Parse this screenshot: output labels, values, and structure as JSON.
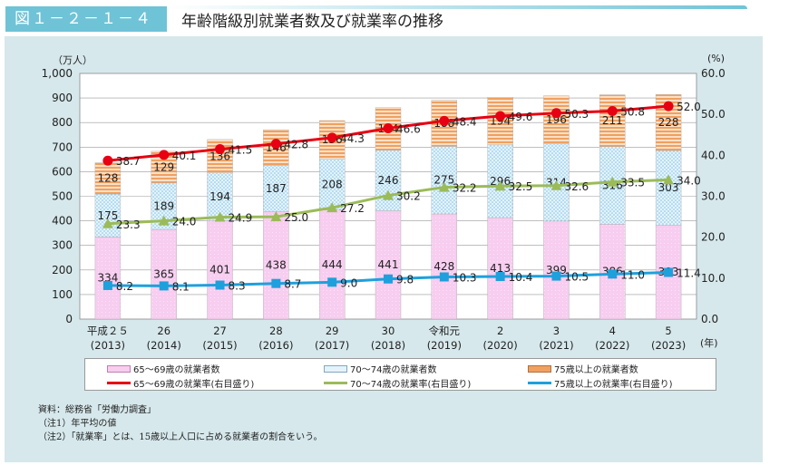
{
  "header": {
    "figure_number": "図１－２－１－４",
    "title": "年齢階級別就業者数及び就業率の推移"
  },
  "chart_data": {
    "type": "bar+line",
    "title": "年齢階級別就業者数及び就業率の推移",
    "left_axis": {
      "unit": "（万人）",
      "ylim": [
        0,
        1000
      ],
      "ticks": [
        "0",
        "100",
        "200",
        "300",
        "400",
        "500",
        "600",
        "700",
        "800",
        "900",
        "1,000"
      ]
    },
    "right_axis": {
      "unit": "(%)",
      "ylim": [
        0,
        60
      ],
      "ticks": [
        "0.0",
        "10.0",
        "20.0",
        "30.0",
        "40.0",
        "50.0",
        "60.0"
      ]
    },
    "x_unit": "(年)",
    "categories": [
      [
        "平成２５",
        "(2013)"
      ],
      [
        "26",
        "(2014)"
      ],
      [
        "27",
        "(2015)"
      ],
      [
        "28",
        "(2016)"
      ],
      [
        "29",
        "(2017)"
      ],
      [
        "30",
        "(2018)"
      ],
      [
        "令和元",
        "(2019)"
      ],
      [
        "2",
        "(2020)"
      ],
      [
        "3",
        "(2021)"
      ],
      [
        "4",
        "(2022)"
      ],
      [
        "5",
        "(2023)"
      ]
    ],
    "bar_series": [
      {
        "name": "65～69歳の就業者数",
        "color": "#f4c6ee",
        "values": [
          334,
          365,
          401,
          438,
          444,
          441,
          428,
          413,
          399,
          386,
          383
        ]
      },
      {
        "name": "70～74歳の就業者数",
        "color": "#c9e6f5",
        "values": [
          175,
          189,
          194,
          187,
          208,
          246,
          275,
          296,
          314,
          316,
          303
        ]
      },
      {
        "name": "75歳以上の就業者数",
        "color": "#f2a66a",
        "values": [
          128,
          129,
          136,
          146,
          156,
          174,
          188,
          194,
          196,
          211,
          228
        ]
      }
    ],
    "line_series": [
      {
        "name": "65～69歳の就業率(右目盛り)",
        "color": "#e60012",
        "marker": "circle",
        "values": [
          38.7,
          40.1,
          41.5,
          42.8,
          44.3,
          46.6,
          48.4,
          49.6,
          50.3,
          50.8,
          52.0
        ]
      },
      {
        "name": "70～74歳の就業率(右目盛り)",
        "color": "#9bbb59",
        "marker": "triangle",
        "values": [
          23.3,
          24.0,
          24.9,
          25.0,
          27.2,
          30.2,
          32.2,
          32.5,
          32.6,
          33.5,
          34.0
        ]
      },
      {
        "name": "75歳以上の就業率(右目盛り)",
        "color": "#1ea0dc",
        "marker": "square",
        "values": [
          8.2,
          8.1,
          8.3,
          8.7,
          9.0,
          9.8,
          10.3,
          10.4,
          10.5,
          11.0,
          11.4
        ]
      }
    ],
    "grid": true,
    "legend": "bottom"
  },
  "notes": [
    "資料：総務省「労働力調査」",
    "（注1）年平均の値",
    "（注2）「就業率」とは、15歳以上人口に占める就業者の割合をいう。"
  ]
}
